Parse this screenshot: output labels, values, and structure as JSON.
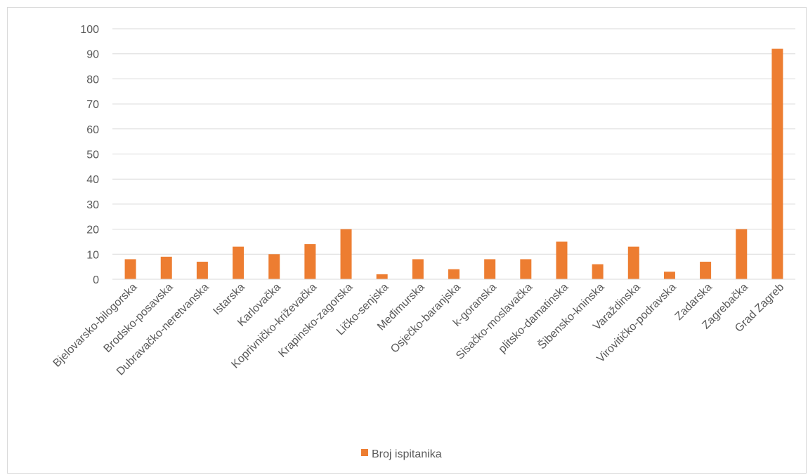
{
  "chart_data": {
    "type": "bar",
    "categories": [
      "Bjelovarsko-bilogorska",
      "Brodsko-posavska",
      "Dubravačko-neretvanska",
      "Istarska",
      "Karlovačka",
      "Koprivničko-križevačka",
      "Krapinsko-zagorska",
      "Ličko-senjska",
      "Međimurska",
      "Osječko-baranjska",
      "k-goranska",
      "Sisačko-moslavačka",
      "plitsko-damatinska",
      "Šibensko-kninska",
      "Varaždinska",
      "Virovitičko-podravska",
      "Zadarska",
      "Zagrebačka",
      "Grad Zagreb"
    ],
    "series": [
      {
        "name": "Broj ispitanika",
        "color": "#ED7D31",
        "values": [
          8,
          9,
          7,
          13,
          10,
          14,
          20,
          2,
          8,
          4,
          8,
          8,
          15,
          6,
          13,
          3,
          7,
          20,
          92
        ]
      }
    ],
    "ylim": [
      0,
      100
    ],
    "yticks": [
      0,
      10,
      20,
      30,
      40,
      50,
      60,
      70,
      80,
      90,
      100
    ],
    "grid": true,
    "legend": "bottom",
    "gridColor": "#d9d9d9",
    "axisColor": "#d9d9d9"
  }
}
